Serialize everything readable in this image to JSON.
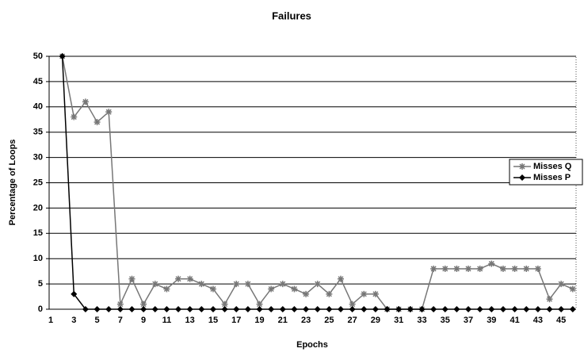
{
  "chart_data": {
    "type": "line",
    "title": "Failures",
    "x_label": "Epochs",
    "y_label": "Percentage of Loops",
    "categories": [
      1,
      null,
      3,
      null,
      5,
      null,
      7,
      null,
      9,
      null,
      11,
      null,
      13,
      null,
      15,
      null,
      17,
      null,
      19,
      null,
      21,
      null,
      23,
      null,
      25,
      null,
      27,
      null,
      29,
      null,
      31,
      null,
      33,
      null,
      35,
      null,
      37,
      null,
      39,
      null,
      41,
      null,
      43,
      null,
      45,
      null
    ],
    "series": [
      {
        "name": "Misses Q",
        "color": "#777777",
        "marker": "star",
        "values": [
          null,
          50,
          38,
          41,
          37,
          39,
          1,
          6,
          1,
          5,
          4,
          6,
          6,
          5,
          4,
          1,
          5,
          5,
          1,
          4,
          5,
          4,
          3,
          5,
          3,
          6,
          1,
          3,
          3,
          0,
          0,
          0,
          0,
          8,
          8,
          8,
          8,
          8,
          9,
          8,
          8,
          8,
          8,
          2,
          5,
          4
        ]
      },
      {
        "name": "Misses P",
        "color": "#000000",
        "marker": "diamond",
        "values": [
          null,
          50,
          3,
          0,
          0,
          0,
          0,
          0,
          0,
          0,
          0,
          0,
          0,
          0,
          0,
          0,
          0,
          0,
          0,
          0,
          0,
          0,
          0,
          0,
          0,
          0,
          0,
          0,
          0,
          0,
          0,
          0,
          0,
          0,
          0,
          0,
          0,
          0,
          0,
          0,
          0,
          0,
          0,
          0,
          0,
          0
        ]
      }
    ],
    "ylim": [
      0,
      50
    ],
    "yticks": [
      0,
      5,
      10,
      15,
      20,
      25,
      30,
      35,
      40,
      45,
      50
    ],
    "grid": true,
    "legend": "right"
  }
}
